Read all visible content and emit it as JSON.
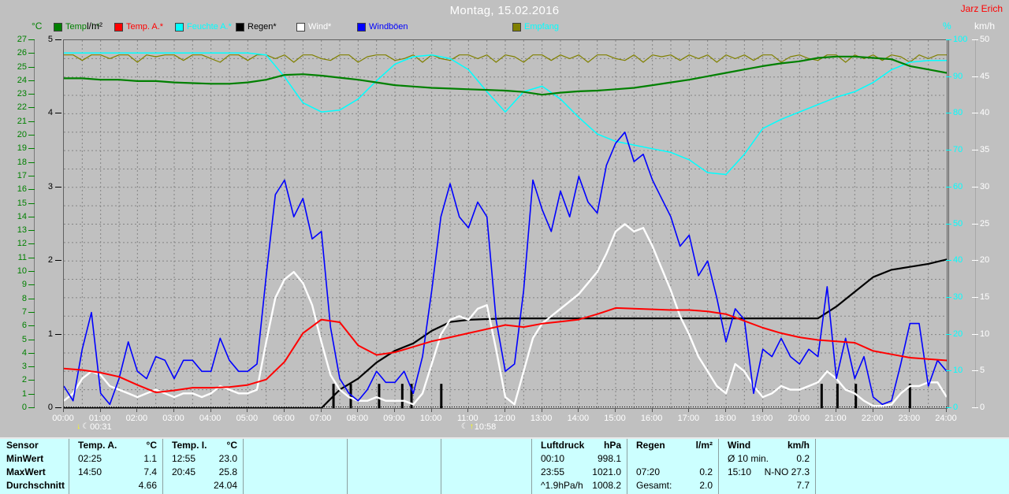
{
  "header": {
    "title": "Montag, 15.02.2016",
    "author": "Jarz Erich"
  },
  "legend": [
    {
      "label": "Temp. I.*",
      "swatch": "#008000",
      "text_color": "#008000"
    },
    {
      "label": "Temp. A.*",
      "swatch": "#ff0000",
      "text_color": "#ff0000"
    },
    {
      "label": "Feuchte A.*",
      "swatch": "#00ffff",
      "text_color": "#00ffff"
    },
    {
      "label": "Regen*",
      "swatch": "#000000",
      "text_color": "#000000"
    },
    {
      "label": "Wind*",
      "swatch": "#ffffff",
      "text_color": "#ffffff"
    },
    {
      "label": "Windböen",
      "swatch": "#0000ff",
      "text_color": "#0000ff"
    },
    {
      "label": "Empfang",
      "swatch": "#808000",
      "text_color": "#00ffff"
    }
  ],
  "axes": {
    "left_temp": {
      "unit": "°C",
      "color": "#008000",
      "min": 0,
      "max": 27,
      "ticks": [
        27.0,
        26.0,
        25.0,
        24.0,
        23.0,
        22.0,
        21.0,
        20.0,
        19.0,
        18.0,
        17.0,
        16.0,
        15.0,
        14.0,
        13.0,
        12.0,
        11.0,
        10.0,
        9.0,
        8.0,
        7.0,
        6.0,
        5.0,
        4.0,
        3.0,
        2.0,
        1.0,
        0.0
      ]
    },
    "left_rain": {
      "unit": "l/m²",
      "color": "#000000",
      "min": 0,
      "max": 5,
      "ticks": [
        5.0,
        4.0,
        3.0,
        2.0,
        1.0,
        0.0
      ]
    },
    "right_hum": {
      "unit": "%",
      "color": "#00ffff",
      "min": 0,
      "max": 100,
      "ticks": [
        100,
        90,
        80,
        70,
        60,
        50,
        40,
        30,
        20,
        10,
        0
      ]
    },
    "right_wind": {
      "unit": "km/h",
      "color": "#ffffff",
      "min": 0,
      "max": 50,
      "ticks": [
        50.0,
        45.0,
        40.0,
        35.0,
        30.0,
        25.0,
        20.0,
        15.0,
        10.0,
        5.0,
        0.0
      ]
    },
    "x": {
      "labels": [
        "00:00",
        "01:00",
        "02:00",
        "03:00",
        "04:00",
        "05:00",
        "06:00",
        "07:00",
        "08:00",
        "09:00",
        "10:00",
        "11:00",
        "12:00",
        "13:00",
        "14:00",
        "15:00",
        "16:00",
        "17:00",
        "18:00",
        "19:00",
        "20:00",
        "21:00",
        "22:00",
        "23:00",
        "24:00"
      ]
    }
  },
  "markers": [
    {
      "type": "moonset",
      "time": "00:31",
      "hour": 0.517
    },
    {
      "type": "moonrise",
      "time": "10:58",
      "hour": 10.967
    }
  ],
  "chart_data": {
    "type": "line",
    "title": "Montag, 15.02.2016",
    "x_unit": "hours",
    "x_range": [
      0,
      24
    ],
    "grid": "dashed",
    "axes_ranges": {
      "temp": [
        0,
        27
      ],
      "humidity": [
        0,
        100
      ],
      "wind": [
        0,
        50
      ],
      "rain": [
        0,
        5
      ]
    },
    "series": [
      {
        "name": "Temp. I.*",
        "axis": "temp",
        "color": "#008000",
        "x_start": 0,
        "x_step": 0.5,
        "values": [
          24.2,
          24.2,
          24.1,
          24.1,
          24.0,
          24.0,
          23.9,
          23.85,
          23.8,
          23.8,
          23.9,
          24.1,
          24.45,
          24.5,
          24.4,
          24.25,
          24.1,
          23.9,
          23.7,
          23.6,
          23.5,
          23.45,
          23.4,
          23.35,
          23.3,
          23.2,
          23.0,
          23.15,
          23.25,
          23.3,
          23.4,
          23.5,
          23.7,
          23.9,
          24.1,
          24.35,
          24.6,
          24.85,
          25.1,
          25.3,
          25.45,
          25.7,
          25.8,
          25.8,
          25.7,
          25.6,
          25.1,
          24.85,
          24.6
        ]
      },
      {
        "name": "Temp. A.*",
        "axis": "temp",
        "color": "#ff0000",
        "x_start": 0,
        "x_step": 0.5,
        "values": [
          2.9,
          2.8,
          2.6,
          2.3,
          1.7,
          1.15,
          1.3,
          1.5,
          1.5,
          1.55,
          1.7,
          2.1,
          3.4,
          5.5,
          6.5,
          6.3,
          4.6,
          3.9,
          4.1,
          4.5,
          4.9,
          5.2,
          5.5,
          5.8,
          6.1,
          5.95,
          6.2,
          6.35,
          6.5,
          6.9,
          7.35,
          7.3,
          7.25,
          7.2,
          7.2,
          7.1,
          6.9,
          6.4,
          5.9,
          5.5,
          5.2,
          5.0,
          4.9,
          4.8,
          4.2,
          3.95,
          3.7,
          3.6,
          3.5
        ]
      },
      {
        "name": "Feuchte A.*",
        "axis": "humidity",
        "color": "#00ffff",
        "x_start": 0,
        "x_step": 0.5,
        "values": [
          96.5,
          96.5,
          96.5,
          96.5,
          96.5,
          96.5,
          96.5,
          96.5,
          96.5,
          96.5,
          96.5,
          96,
          90,
          83,
          80.5,
          81,
          84,
          89,
          93.5,
          95.5,
          96,
          95,
          92,
          86,
          80.5,
          86,
          87.5,
          84,
          79,
          74.5,
          72.5,
          71.5,
          70.5,
          69.5,
          67.5,
          64,
          63.5,
          69,
          76,
          78.5,
          80.5,
          82.5,
          84.5,
          86,
          88.5,
          92,
          94,
          94.5,
          94.5
        ]
      },
      {
        "name": "Regen*",
        "axis": "rain",
        "color": "#000000",
        "x_start": 0,
        "x_step": 0.5,
        "values": [
          0,
          0,
          0,
          0,
          0,
          0,
          0,
          0,
          0,
          0,
          0,
          0,
          0,
          0,
          0,
          0.25,
          0.4,
          0.62,
          0.78,
          0.88,
          1.05,
          1.17,
          1.2,
          1.21,
          1.22,
          1.22,
          1.22,
          1.22,
          1.22,
          1.22,
          1.22,
          1.22,
          1.22,
          1.22,
          1.22,
          1.22,
          1.22,
          1.22,
          1.22,
          1.22,
          1.22,
          1.22,
          1.38,
          1.58,
          1.78,
          1.88,
          1.92,
          1.96,
          2.02
        ]
      },
      {
        "name": "Wind*",
        "axis": "wind",
        "color": "#ffffff",
        "x_start": 0,
        "x_step": 0.25,
        "values": [
          1,
          2,
          4,
          5,
          4.5,
          3,
          2.5,
          2,
          1.5,
          2,
          2.5,
          2,
          1.5,
          2,
          2,
          1.5,
          2,
          3,
          2.5,
          2,
          2,
          2.5,
          9,
          15,
          17.5,
          18.5,
          17,
          14,
          9,
          4.5,
          2.5,
          1.5,
          1,
          1,
          1.5,
          1,
          1,
          1,
          0.5,
          2,
          6,
          10,
          12,
          12.5,
          12,
          13.5,
          14,
          8,
          1.5,
          0.5,
          5,
          9.5,
          11.5,
          12.5,
          13.5,
          14.5,
          15.5,
          17,
          18.5,
          21,
          24,
          25,
          24,
          24.5,
          22,
          19,
          16,
          12.5,
          10,
          7,
          5,
          3,
          2,
          6,
          5,
          3,
          1.5,
          2,
          3,
          2.5,
          2.5,
          3,
          3.5,
          5,
          4,
          2.5,
          2,
          1,
          0.3,
          0.3,
          0.5,
          2,
          3,
          3,
          3.5,
          3.5,
          1.5
        ]
      },
      {
        "name": "Windböen",
        "axis": "wind",
        "color": "#0000ff",
        "x_start": 0,
        "x_step": 0.25,
        "values": [
          3,
          1,
          8,
          13,
          2,
          0.5,
          4,
          9,
          5,
          4,
          7,
          6.5,
          4,
          6.5,
          6.5,
          5,
          5,
          9.5,
          6.5,
          5,
          5,
          6,
          18,
          29,
          31,
          26,
          28.5,
          23,
          24,
          11,
          4,
          2,
          1,
          2.5,
          5,
          3.5,
          3.5,
          5,
          2,
          7,
          16,
          26,
          30.5,
          26,
          24.5,
          28,
          26,
          12,
          5,
          6,
          16,
          31,
          27,
          24,
          29.5,
          26,
          31.5,
          28,
          26.5,
          33,
          36,
          37.5,
          33.5,
          34.5,
          31,
          28.5,
          26,
          22,
          23.5,
          18,
          20,
          15,
          9,
          13.5,
          12,
          2,
          8,
          7,
          9.5,
          7,
          6,
          8,
          7,
          16.5,
          4,
          9.5,
          4,
          7,
          1.5,
          0.5,
          1,
          6,
          11.5,
          11.5,
          3,
          6.5,
          5
        ]
      },
      {
        "name": "Empfang",
        "axis": "humidity",
        "color": "#808000",
        "x_start": 0,
        "x_step": 0.25,
        "values": [
          96,
          96,
          94.5,
          96,
          96,
          95,
          96,
          96,
          94,
          96,
          95.5,
          96,
          96,
          94.5,
          96,
          96,
          95,
          94,
          96,
          96,
          94.5,
          96,
          96,
          95,
          96,
          94,
          96,
          96,
          95,
          94.5,
          96,
          96,
          94,
          95.5,
          96,
          96,
          94.5,
          95,
          96,
          94,
          96,
          95,
          94.5,
          96,
          96,
          95,
          96,
          94,
          96,
          95.5,
          94,
          96,
          96,
          94.5,
          96,
          95,
          96,
          94,
          96,
          96,
          95,
          94.5,
          96,
          94,
          96,
          95.5,
          96,
          94.5,
          96,
          95,
          96,
          94,
          96,
          95,
          96,
          94.5,
          96,
          96,
          94,
          95.5,
          96,
          95,
          94.5,
          96,
          96,
          94,
          96,
          95,
          96,
          94.5,
          96,
          95.5,
          94,
          96,
          95,
          96,
          96
        ]
      }
    ],
    "rain_event_times": [
      7.33,
      7.8,
      8.57,
      9.2,
      9.45,
      10.26,
      20.6,
      21.03,
      21.53,
      23.0
    ],
    "rain_event_height": 0.33
  },
  "table": {
    "corner": "Sensor",
    "row_labels": [
      "MinWert",
      "MaxWert",
      "Durchschnitt"
    ],
    "columns": [
      {
        "title": "Temp. A.",
        "unit": "°C",
        "rows": [
          [
            "02:25",
            "1.1"
          ],
          [
            "14:50",
            "7.4"
          ],
          [
            "",
            "4.66"
          ]
        ]
      },
      {
        "title": "Temp. I.",
        "unit": "°C",
        "rows": [
          [
            "12:55",
            "23.0"
          ],
          [
            "20:45",
            "25.8"
          ],
          [
            "",
            "24.04"
          ]
        ]
      },
      {
        "title": "",
        "unit": "",
        "rows": [
          [
            "",
            ""
          ],
          [
            "",
            ""
          ],
          [
            "",
            ""
          ]
        ]
      },
      {
        "title": "",
        "unit": "",
        "rows": [
          [
            "",
            ""
          ],
          [
            "",
            ""
          ],
          [
            "",
            ""
          ]
        ]
      },
      {
        "title": "",
        "unit": "",
        "rows": [
          [
            "",
            ""
          ],
          [
            "",
            ""
          ],
          [
            "",
            ""
          ]
        ]
      },
      {
        "title": "Luftdruck",
        "unit": "hPa",
        "rows": [
          [
            "00:10",
            "998.1"
          ],
          [
            "23:55",
            "1021.0"
          ],
          [
            "^1.9hPa/h",
            "1008.2"
          ]
        ]
      },
      {
        "title": "Regen",
        "unit": "l/m²",
        "rows": [
          [
            "",
            ""
          ],
          [
            "07:20",
            "0.2"
          ],
          [
            "Gesamt:",
            "2.0"
          ]
        ]
      },
      {
        "title": "Wind",
        "unit": "km/h",
        "rows": [
          [
            "Ø 10 min.",
            "0.2"
          ],
          [
            "15:10",
            "N-NO 27.3"
          ],
          [
            "",
            "7.7"
          ]
        ]
      },
      {
        "title": "",
        "unit": "",
        "rows": [
          [
            "",
            ""
          ],
          [
            "",
            ""
          ],
          [
            "",
            ""
          ]
        ]
      }
    ]
  }
}
